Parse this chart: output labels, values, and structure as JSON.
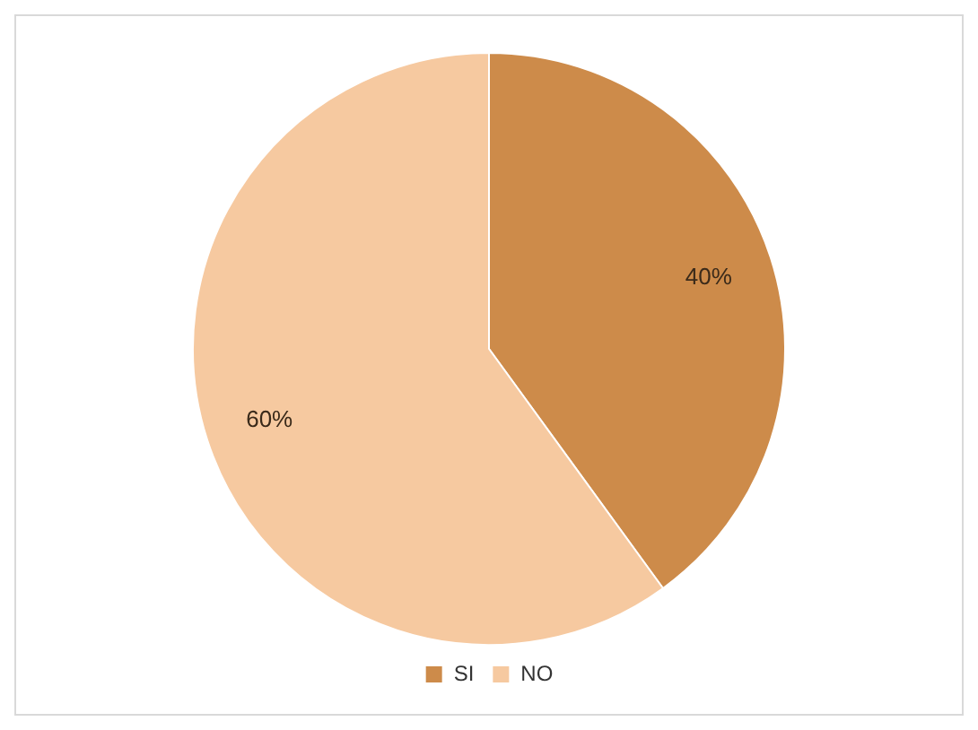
{
  "chart_data": {
    "type": "pie",
    "categories": [
      "SI",
      "NO"
    ],
    "values": [
      40,
      60
    ],
    "colors": [
      "#cd8b4a",
      "#f6c9a0"
    ],
    "value_labels": [
      "40%",
      "60%"
    ],
    "legend": "bottom"
  }
}
